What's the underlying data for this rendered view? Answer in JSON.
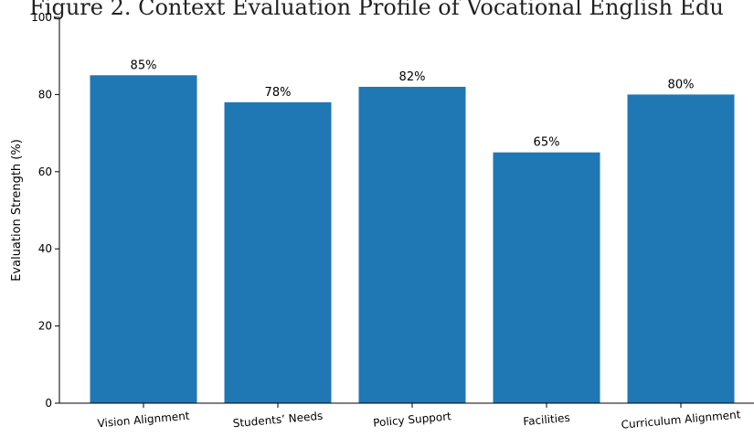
{
  "chart_data": {
    "type": "bar",
    "title": "Figure 2. Context Evaluation Profile of Vocational English Edu",
    "xlabel": "",
    "ylabel": "Evaluation Strength (%)",
    "ylim": [
      0,
      100
    ],
    "yticks": [
      0,
      20,
      40,
      60,
      80,
      100
    ],
    "categories": [
      "Vision Alignment",
      "Students’ Needs",
      "Policy Support",
      "Facilities",
      "Curriculum Alignment"
    ],
    "values": [
      85,
      78,
      82,
      65,
      80
    ],
    "data_labels": [
      "85%",
      "78%",
      "82%",
      "65%",
      "80%"
    ],
    "bar_color": "#1f77b4",
    "grid": false,
    "legend": "none"
  }
}
